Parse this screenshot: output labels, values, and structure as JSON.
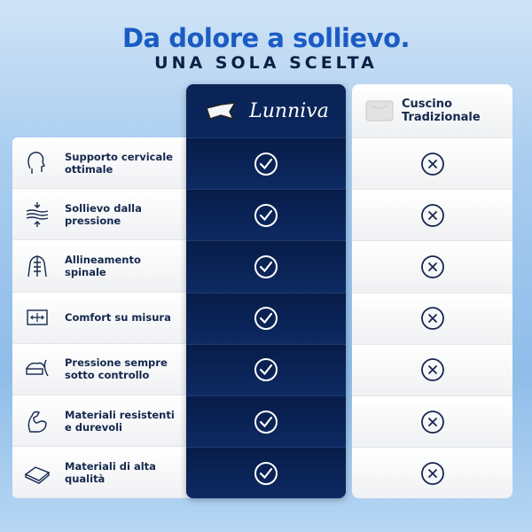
{
  "header": {
    "title": "Da dolore a sollievo.",
    "subtitle": "UNA SOLA SCELTA"
  },
  "colors": {
    "title": "#1a5bc4",
    "brand_column": "#0a2457",
    "text": "#14284d"
  },
  "brand": {
    "name": "Lunniva",
    "icon": "star-pillow-icon",
    "mark": "check-circle-icon"
  },
  "traditional": {
    "name_line1": "Cuscino",
    "name_line2": "Tradizionale",
    "icon": "pillow-icon",
    "mark": "x-circle-icon"
  },
  "features": [
    {
      "line1": "Supporto cervicale",
      "line2": "ottimale",
      "icon": "head-neck-icon"
    },
    {
      "line1": "Sollievo dalla",
      "line2": "pressione",
      "icon": "layers-pressure-icon"
    },
    {
      "line1": "Allineamento",
      "line2": "spinale",
      "icon": "spine-icon"
    },
    {
      "line1": "Comfort su misura",
      "line2": "",
      "icon": "resize-arrows-icon"
    },
    {
      "line1": "Pressione sempre",
      "line2": "sotto controllo",
      "icon": "pressure-gauge-icon"
    },
    {
      "line1": "Materiali resistenti",
      "line2": "e durevoli",
      "icon": "muscle-arm-icon"
    },
    {
      "line1": "Materiali di alta",
      "line2": "qualità",
      "icon": "memory-foam-icon"
    }
  ]
}
